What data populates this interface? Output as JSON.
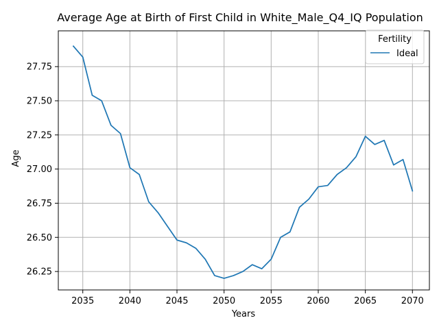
{
  "chart_data": {
    "type": "line",
    "title": "Average Age at Birth of First Child in White_Male_Q4_IQ Population",
    "xlabel": "Years",
    "ylabel": "Age",
    "xlim": [
      2032.4,
      2071.8
    ],
    "ylim": [
      26.115,
      28.012
    ],
    "x_ticks": [
      2035,
      2040,
      2045,
      2050,
      2055,
      2060,
      2065,
      2070
    ],
    "x_tick_labels": [
      "2035",
      "2040",
      "2045",
      "2050",
      "2055",
      "2060",
      "2065",
      "2070"
    ],
    "y_ticks": [
      26.25,
      26.5,
      26.75,
      27.0,
      27.25,
      27.5,
      27.75
    ],
    "y_tick_labels": [
      "26.25",
      "26.50",
      "26.75",
      "27.00",
      "27.25",
      "27.50",
      "27.75"
    ],
    "grid": true,
    "legend": {
      "title": "Fertility",
      "position": "top-right"
    },
    "series": [
      {
        "name": "Ideal",
        "color": "#1f77b4",
        "x": [
          2034,
          2035,
          2036,
          2037,
          2038,
          2039,
          2040,
          2041,
          2042,
          2043,
          2044,
          2045,
          2046,
          2047,
          2048,
          2049,
          2050,
          2051,
          2052,
          2053,
          2054,
          2055,
          2056,
          2057,
          2058,
          2059,
          2060,
          2061,
          2062,
          2063,
          2064,
          2065,
          2066,
          2067,
          2068,
          2069,
          2070
        ],
        "y": [
          27.9,
          27.82,
          27.54,
          27.5,
          27.32,
          27.26,
          27.01,
          26.96,
          26.76,
          26.68,
          26.58,
          26.48,
          26.46,
          26.42,
          26.34,
          26.22,
          26.2,
          26.22,
          26.25,
          26.3,
          26.27,
          26.34,
          26.5,
          26.54,
          26.72,
          26.78,
          26.87,
          26.88,
          26.96,
          27.01,
          27.09,
          27.24,
          27.18,
          27.21,
          27.03,
          27.07,
          26.84
        ]
      }
    ]
  }
}
